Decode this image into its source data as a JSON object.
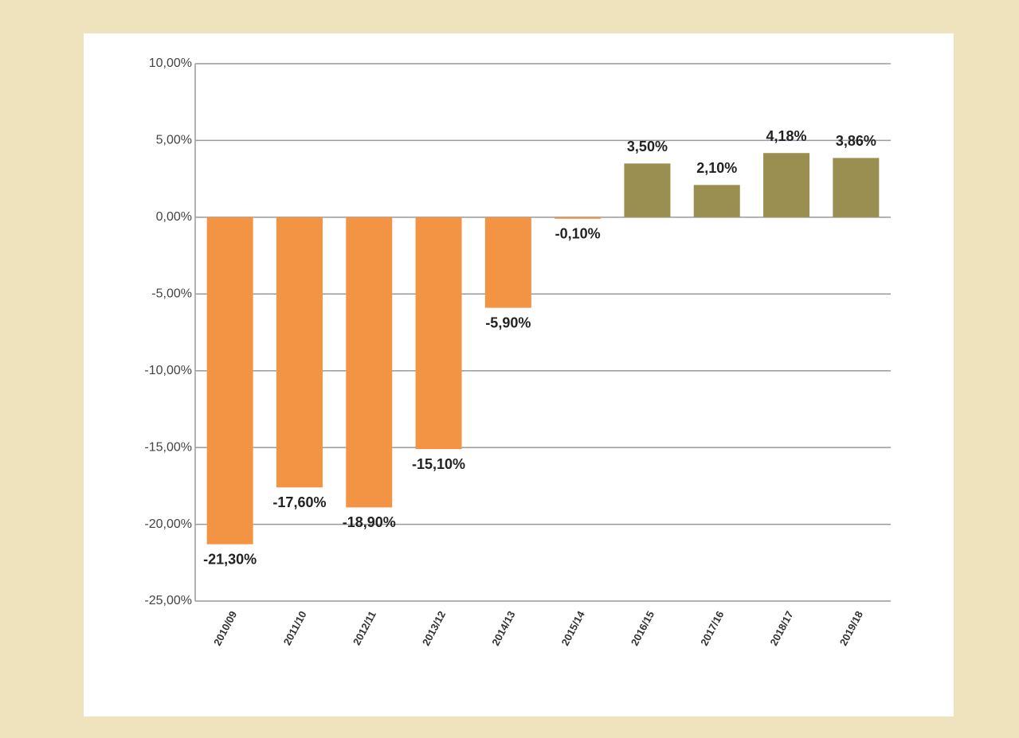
{
  "chart_data": {
    "type": "bar",
    "categories": [
      "2010/09",
      "2011/10",
      "2012/11",
      "2013/12",
      "2014/13",
      "2015/14",
      "2016/15",
      "2017/16",
      "2018/17",
      "2019/18"
    ],
    "values": [
      -21.3,
      -17.6,
      -18.9,
      -15.1,
      -5.9,
      -0.1,
      3.5,
      2.1,
      4.18,
      3.86
    ],
    "value_labels": [
      "-21,30%",
      "-17,60%",
      "-18,90%",
      "-15,10%",
      "-5,90%",
      "-0,10%",
      "3,50%",
      "2,10%",
      "4,18%",
      "3,86%"
    ],
    "colors": [
      "#f39444",
      "#f39444",
      "#f39444",
      "#f39444",
      "#f39444",
      "#f39444",
      "#9a8e50",
      "#9a8e50",
      "#9a8e50",
      "#9a8e50"
    ],
    "ylim": [
      -25,
      10
    ],
    "yticks": [
      {
        "value": -25,
        "label": "-25,00%"
      },
      {
        "value": -20,
        "label": "-20,00%"
      },
      {
        "value": -15,
        "label": "-15,00%"
      },
      {
        "value": -10,
        "label": "-10,00%"
      },
      {
        "value": -5,
        "label": "-5,00%"
      },
      {
        "value": 0,
        "label": "0,00%"
      },
      {
        "value": 5,
        "label": "5,00%"
      },
      {
        "value": 10,
        "label": "10,00%"
      }
    ],
    "grid": true
  }
}
